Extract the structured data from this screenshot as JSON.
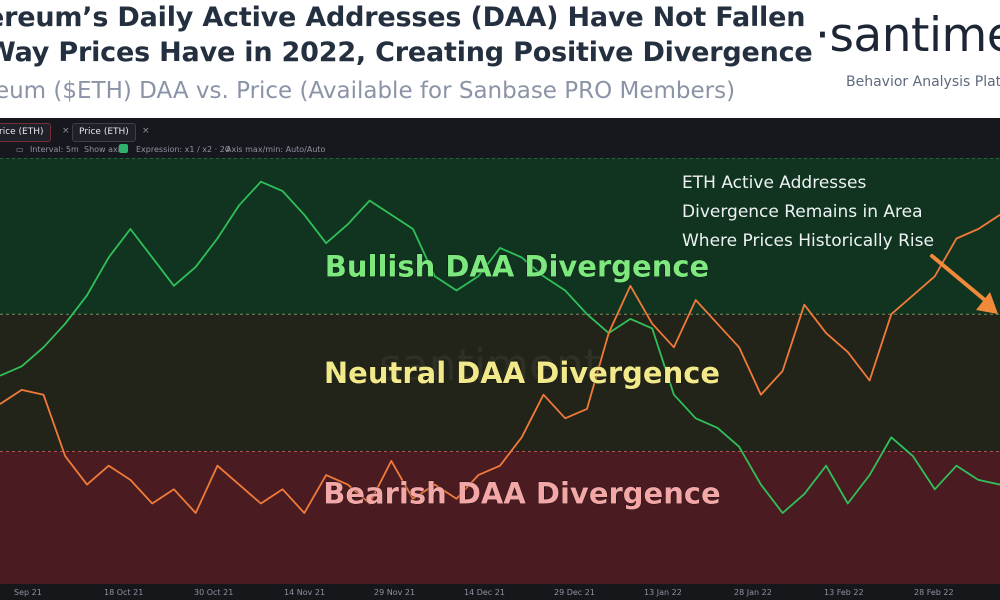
{
  "header": {
    "title_line1": "ereum’s Daily Active Addresses (DAA) Have Not Fallen",
    "title_line2": "Way Prices Have in 2022, Creating Positive Divergence",
    "subtitle": "reum ($ETH) DAA vs. Price (Available for Sanbase PRO Members)",
    "logo": "·santimen",
    "logo_tagline": "Behavior Analysis Plat"
  },
  "toolbar": {
    "tab1_label": "rice (ETH)",
    "tab2_label": "Price (ETH)",
    "close_glyph": "×",
    "interval_label": "Interval: 5m",
    "show_axis_label": "Show axis",
    "expression_label": "Expression: x1 / x2 · 20",
    "axis_label": "Axis max/min: Auto/Auto"
  },
  "colors": {
    "background": "#15171b",
    "bullish_zone": "#10341f",
    "neutral_zone": "#222419",
    "bearish_zone": "#4a1c21",
    "daa_line": "#30c05a",
    "divergence_line": "#f07a3a",
    "annotation_arrow": "#f08a3a"
  },
  "chart_data": {
    "type": "line",
    "title": "",
    "watermark": "santiment",
    "x_ticks": [
      "Sep 21",
      "18 Oct 21",
      "30 Oct 21",
      "14 Nov 21",
      "29 Nov 21",
      "14 Dec 21",
      "29 Dec 21",
      "13 Jan 22",
      "28 Jan 22",
      "13 Feb 22",
      "28 Feb 22"
    ],
    "zones": [
      {
        "name": "Bullish DAA Divergence",
        "color": "#10341f"
      },
      {
        "name": "Neutral DAA Divergence",
        "color": "#222419"
      },
      {
        "name": "Bearish DAA Divergence",
        "color": "#4a1c21"
      }
    ],
    "annotation": [
      "ETH Active Addresses",
      "Divergence Remains in Area",
      "Where Prices Historically Rise"
    ],
    "ylim": [
      -45,
      45
    ],
    "zone_bounds": {
      "bullish_min": 12,
      "bearish_max": -17
    },
    "series": [
      {
        "color": "#30c05a",
        "values": [
          -1,
          1,
          5,
          10,
          16,
          24,
          30,
          24,
          18,
          22,
          28,
          35,
          40,
          38,
          33,
          27,
          31,
          36,
          33,
          30,
          20,
          17,
          20,
          26,
          24,
          20,
          17,
          12,
          8,
          11,
          9,
          -5,
          -10,
          -12,
          -16,
          -24,
          -30,
          -26,
          -20,
          -28,
          -22,
          -14,
          -18,
          -25,
          -20,
          -23,
          -24
        ]
      },
      {
        "color": "#f07a3a",
        "values": [
          -7,
          -4,
          -5,
          -18,
          -24,
          -20,
          -23,
          -28,
          -25,
          -30,
          -20,
          -24,
          -28,
          -25,
          -30,
          -22,
          -24,
          -28,
          -19,
          -27,
          -24,
          -27,
          -22,
          -20,
          -14,
          -5,
          -10,
          -8,
          8,
          18,
          10,
          5,
          15,
          10,
          5,
          -5,
          0,
          14,
          8,
          4,
          -2,
          12,
          16,
          20,
          28,
          30,
          33
        ]
      }
    ]
  }
}
